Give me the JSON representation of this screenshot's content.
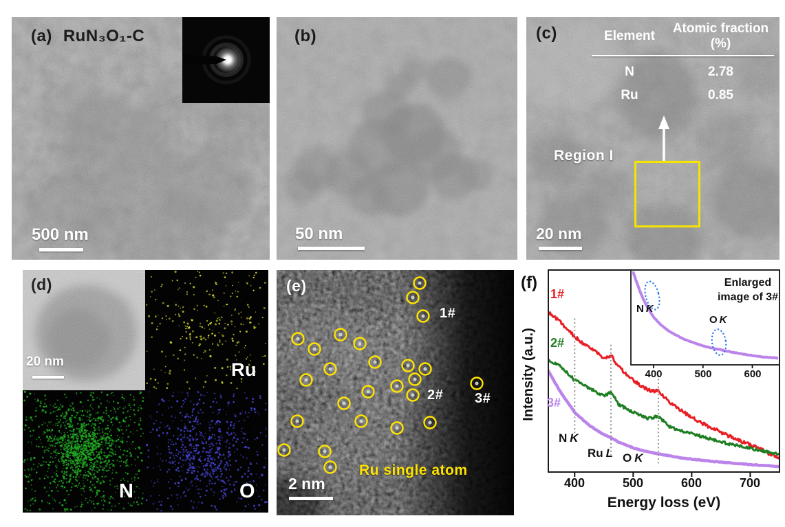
{
  "figure": {
    "panels": {
      "a": {
        "label": "(a)",
        "title": "RuN₃O₁-C",
        "scalebar": "500 nm",
        "inset": "saed-pattern"
      },
      "b": {
        "label": "(b)",
        "scalebar": "50 nm"
      },
      "c": {
        "label": "(c)",
        "scalebar": "20 nm",
        "region_label": "Region I",
        "table": {
          "headers": [
            "Element",
            "Atomic fraction (%)"
          ],
          "rows": [
            [
              "N",
              "2.78"
            ],
            [
              "Ru",
              "0.85"
            ]
          ]
        }
      },
      "d": {
        "label": "(d)",
        "scalebar": "20 nm",
        "maps": [
          {
            "element": "Ru",
            "color": "#d2d232",
            "dots": 260
          },
          {
            "element": "N",
            "color": "#21a821",
            "dots": 1500
          },
          {
            "element": "O",
            "color": "#4343d2",
            "dots": 700
          }
        ]
      },
      "e": {
        "label": "(e)",
        "scalebar": "2 nm",
        "annotation": "Ru single atom",
        "markers": [
          "1#",
          "2#",
          "3#"
        ],
        "circle_color": "#ffe400",
        "circles": [
          [
            208,
            19
          ],
          [
            198,
            40
          ],
          [
            213,
            67
          ],
          [
            31,
            100
          ],
          [
            93,
            94
          ],
          [
            55,
            115
          ],
          [
            121,
            107
          ],
          [
            143,
            134
          ],
          [
            78,
            144
          ],
          [
            191,
            139
          ],
          [
            216,
            144
          ],
          [
            43,
            160
          ],
          [
            201,
            159
          ],
          [
            175,
            169
          ],
          [
            133,
            177
          ],
          [
            198,
            182
          ],
          [
            291,
            165
          ],
          [
            98,
            194
          ],
          [
            30,
            220
          ],
          [
            123,
            220
          ],
          [
            175,
            230
          ],
          [
            223,
            222
          ],
          [
            11,
            262
          ],
          [
            70,
            264
          ],
          [
            78,
            287
          ]
        ]
      },
      "f": {
        "label": "(f)"
      }
    }
  },
  "chart_data": {
    "type": "line",
    "xlabel": "Energy loss (eV)",
    "ylabel": "Intensity (a.u.)",
    "xlim": [
      355,
      750
    ],
    "xticks": [
      400,
      500,
      600,
      700
    ],
    "yticks": [],
    "grid": false,
    "x": [
      355,
      375,
      400,
      425,
      450,
      462,
      475,
      500,
      525,
      543,
      562,
      587,
      612,
      637,
      662,
      687,
      712,
      737,
      750
    ],
    "series": [
      {
        "name": "1#",
        "color": "#e81e25",
        "jitter": 2.4,
        "width": 3,
        "values": [
          0.79,
          0.745,
          0.67,
          0.615,
          0.565,
          0.578,
          0.52,
          0.455,
          0.405,
          0.4,
          0.345,
          0.295,
          0.25,
          0.215,
          0.18,
          0.15,
          0.12,
          0.085,
          0.07
        ]
      },
      {
        "name": "2#",
        "color": "#1e7e22",
        "jitter": 2.0,
        "width": 3,
        "values": [
          0.55,
          0.525,
          0.455,
          0.415,
          0.375,
          0.398,
          0.335,
          0.295,
          0.265,
          0.276,
          0.225,
          0.2,
          0.18,
          0.16,
          0.14,
          0.125,
          0.11,
          0.095,
          0.088
        ]
      },
      {
        "name": "3#",
        "color": "#bb84ea",
        "jitter": 0.5,
        "width": 4.5,
        "values": [
          0.5,
          0.4,
          0.295,
          0.23,
          0.185,
          0.17,
          0.148,
          0.12,
          0.1,
          0.09,
          0.08,
          0.068,
          0.06,
          0.052,
          0.046,
          0.04,
          0.035,
          0.03,
          0.027
        ]
      }
    ],
    "edges": [
      {
        "sym": "N",
        "edge": "K",
        "eV": 400
      },
      {
        "sym": "Ru",
        "edge": "L",
        "eV": 462
      },
      {
        "sym": "O",
        "edge": "K",
        "eV": 543
      }
    ],
    "inset": {
      "title": "Enlarged image of 3#",
      "series_name": "3#",
      "color": "#bb84ea",
      "xlim": [
        354,
        655
      ],
      "xticks": [
        400,
        500,
        600
      ],
      "annotations": [
        {
          "sym": "N",
          "edge": "K"
        },
        {
          "sym": "O",
          "edge": "K"
        }
      ],
      "x": [
        356,
        365,
        375,
        385,
        395,
        400,
        405,
        415,
        430,
        445,
        460,
        480,
        500,
        520,
        540,
        545,
        555,
        575,
        600,
        625,
        650,
        655
      ],
      "values": [
        1.02,
        0.88,
        0.74,
        0.63,
        0.545,
        0.505,
        0.475,
        0.42,
        0.36,
        0.315,
        0.275,
        0.235,
        0.2,
        0.175,
        0.155,
        0.15,
        0.138,
        0.118,
        0.098,
        0.082,
        0.072,
        0.07
      ]
    }
  }
}
